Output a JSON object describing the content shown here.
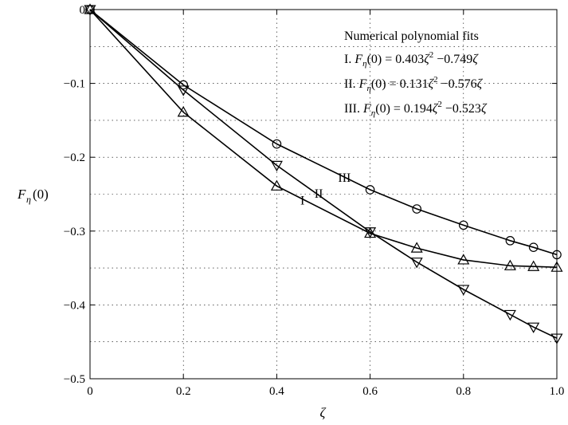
{
  "chart_data": {
    "type": "line",
    "xlabel": "ζ",
    "ylabel": "F_η(0)",
    "xlim": [
      0,
      1
    ],
    "ylim": [
      -0.5,
      0
    ],
    "xticks": [
      0,
      0.2,
      0.4,
      0.6,
      0.8,
      1.0
    ],
    "xtick_labels": [
      "0",
      "0.2",
      "0.4",
      "0.6",
      "0.8",
      "1.0"
    ],
    "yticks": [
      0,
      -0.1,
      -0.2,
      -0.3,
      -0.4,
      -0.5
    ],
    "ytick_labels": [
      "0",
      "−0.1",
      "−0.2",
      "−0.3",
      "−0.4",
      "−0.5"
    ],
    "grid": true,
    "series": [
      {
        "name": "I",
        "marker": "triangle-up",
        "x": [
          0,
          0.2,
          0.4,
          0.6,
          0.7,
          0.8,
          0.9,
          0.95,
          1.0
        ],
        "y": [
          0,
          -0.139,
          -0.239,
          -0.303,
          -0.323,
          -0.339,
          -0.347,
          -0.348,
          -0.349
        ],
        "label_pos": [
          0.455,
          -0.264
        ]
      },
      {
        "name": "II",
        "marker": "triangle-down",
        "x": [
          0,
          0.2,
          0.4,
          0.6,
          0.7,
          0.8,
          0.9,
          0.95,
          1.0
        ],
        "y": [
          0,
          -0.109,
          -0.211,
          -0.301,
          -0.342,
          -0.379,
          -0.413,
          -0.43,
          -0.445
        ],
        "label_pos": [
          0.49,
          -0.255
        ]
      },
      {
        "name": "III",
        "marker": "circle",
        "x": [
          0,
          0.2,
          0.4,
          0.6,
          0.7,
          0.8,
          0.9,
          0.95,
          1.0
        ],
        "y": [
          0,
          -0.102,
          -0.182,
          -0.244,
          -0.27,
          -0.292,
          -0.313,
          -0.322,
          -0.332
        ],
        "label_pos": [
          0.545,
          -0.233
        ]
      }
    ],
    "annotation": {
      "title": "Numerical polynomial fits",
      "lines": [
        {
          "prefix": "I.",
          "a": "0.403",
          "b": "0.749"
        },
        {
          "prefix": "II.",
          "a": "0.131",
          "b": "0.576"
        },
        {
          "prefix": "III.",
          "a": "0.194",
          "b": "0.523"
        }
      ]
    }
  }
}
